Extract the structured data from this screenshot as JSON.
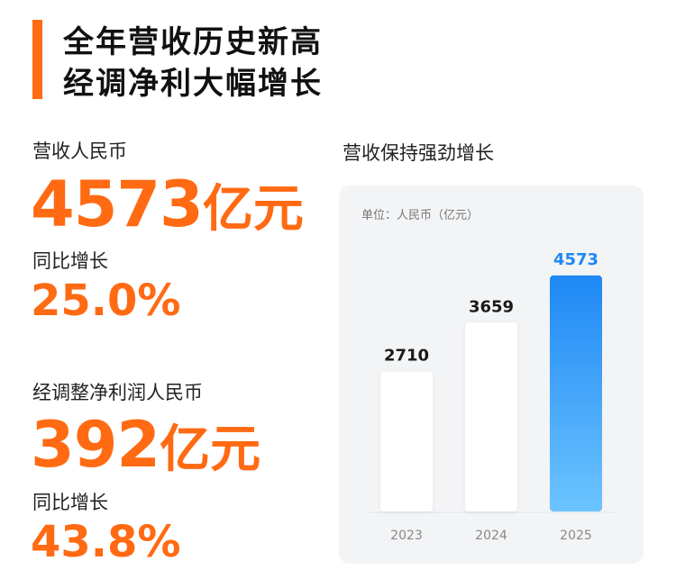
{
  "headline": {
    "line1": "全年营收历史新高",
    "line2": "经调净利大幅增长"
  },
  "revenue": {
    "label": "营收人民币",
    "value": "4573",
    "unit": "亿元",
    "growth_label": "同比增长",
    "growth_value": "25.0%"
  },
  "profit": {
    "label": "经调整净利润人民币",
    "value": "392",
    "unit": "亿元",
    "growth_label": "同比增长",
    "growth_value": "43.8%"
  },
  "chart_title": "营收保持强劲增长",
  "colors": {
    "accent": "#ff6a13",
    "bar_white": "#ffffff",
    "bar_blue_top": "#1e88f5",
    "bar_blue_bottom": "#6cc4ff",
    "label_blue": "#1e88f5"
  },
  "chart_data": {
    "type": "bar",
    "unit_label": "单位：人民币（亿元）",
    "categories": [
      "2023",
      "2024",
      "2025"
    ],
    "values": [
      2710,
      3659,
      4573
    ],
    "value_labels": [
      "2710",
      "3659",
      "4573"
    ],
    "highlight_index": 2,
    "ylim": [
      0,
      5200
    ],
    "grid": false,
    "legend": "none"
  }
}
